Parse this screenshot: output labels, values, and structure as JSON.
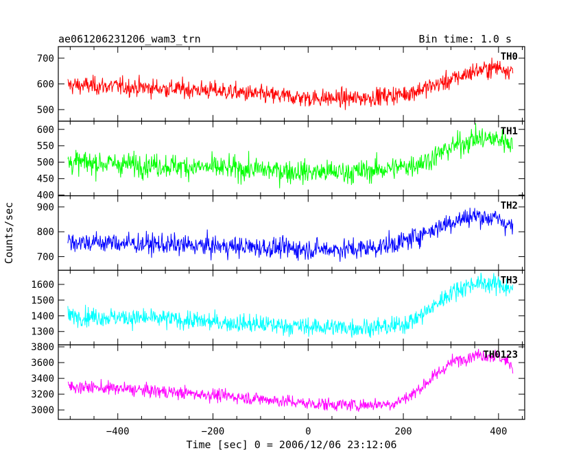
{
  "header": {
    "title": "ae061206231206_wam3_trn",
    "bin_time": "Bin time: 1.0 s"
  },
  "chart_data": {
    "type": "line",
    "title": "ae061206231206_wam3_trn",
    "xlabel": "Time [sec] 0 = 2006/12/06 23:12:06",
    "ylabel": "Counts/sec",
    "xlim": [
      -525,
      455
    ],
    "xticks": [
      -400,
      -200,
      0,
      200,
      400
    ],
    "grid": false,
    "panels": [
      {
        "name": "TH0",
        "color": "#ff0000",
        "ylim": [
          455,
          745
        ],
        "yticks": [
          500,
          600,
          700
        ],
        "noise": 30,
        "trend": [
          [
            -505,
            595
          ],
          [
            -400,
            590
          ],
          [
            -300,
            582
          ],
          [
            -200,
            575
          ],
          [
            -100,
            558
          ],
          [
            0,
            545
          ],
          [
            100,
            543
          ],
          [
            200,
            560
          ],
          [
            250,
            585
          ],
          [
            300,
            615
          ],
          [
            350,
            650
          ],
          [
            400,
            665
          ],
          [
            430,
            650
          ]
        ]
      },
      {
        "name": "TH1",
        "color": "#00ff00",
        "ylim": [
          398,
          625
        ],
        "yticks": [
          400,
          450,
          500,
          550,
          600
        ],
        "noise": 30,
        "trend": [
          [
            -505,
            500
          ],
          [
            -400,
            495
          ],
          [
            -300,
            490
          ],
          [
            -200,
            483
          ],
          [
            -100,
            477
          ],
          [
            0,
            470
          ],
          [
            100,
            470
          ],
          [
            200,
            485
          ],
          [
            250,
            505
          ],
          [
            300,
            545
          ],
          [
            350,
            572
          ],
          [
            400,
            570
          ],
          [
            430,
            560
          ]
        ]
      },
      {
        "name": "TH2",
        "color": "#0000ff",
        "ylim": [
          645,
          945
        ],
        "yticks": [
          700,
          800,
          900
        ],
        "noise": 35,
        "trend": [
          [
            -505,
            760
          ],
          [
            -400,
            755
          ],
          [
            -300,
            748
          ],
          [
            -200,
            742
          ],
          [
            -100,
            737
          ],
          [
            0,
            730
          ],
          [
            100,
            730
          ],
          [
            150,
            740
          ],
          [
            200,
            760
          ],
          [
            250,
            800
          ],
          [
            300,
            840
          ],
          [
            350,
            865
          ],
          [
            400,
            850
          ],
          [
            430,
            820
          ]
        ]
      },
      {
        "name": "TH3",
        "color": "#00ffff",
        "ylim": [
          1215,
          1690
        ],
        "yticks": [
          1300,
          1400,
          1500,
          1600
        ],
        "noise": 50,
        "trend": [
          [
            -505,
            1400
          ],
          [
            -400,
            1390
          ],
          [
            -300,
            1380
          ],
          [
            -200,
            1360
          ],
          [
            -100,
            1345
          ],
          [
            0,
            1330
          ],
          [
            100,
            1325
          ],
          [
            180,
            1330
          ],
          [
            220,
            1370
          ],
          [
            260,
            1450
          ],
          [
            300,
            1550
          ],
          [
            350,
            1610
          ],
          [
            400,
            1600
          ],
          [
            430,
            1570
          ]
        ]
      },
      {
        "name": "TH0123",
        "color": "#ff00ff",
        "ylim": [
          2880,
          3825
        ],
        "yticks": [
          3000,
          3200,
          3400,
          3600,
          3800
        ],
        "noise": 70,
        "trend": [
          [
            -505,
            3300
          ],
          [
            -400,
            3270
          ],
          [
            -300,
            3230
          ],
          [
            -200,
            3190
          ],
          [
            -100,
            3140
          ],
          [
            0,
            3080
          ],
          [
            100,
            3060
          ],
          [
            180,
            3080
          ],
          [
            220,
            3200
          ],
          [
            260,
            3400
          ],
          [
            300,
            3600
          ],
          [
            350,
            3700
          ],
          [
            400,
            3680
          ],
          [
            430,
            3560
          ]
        ]
      }
    ]
  }
}
